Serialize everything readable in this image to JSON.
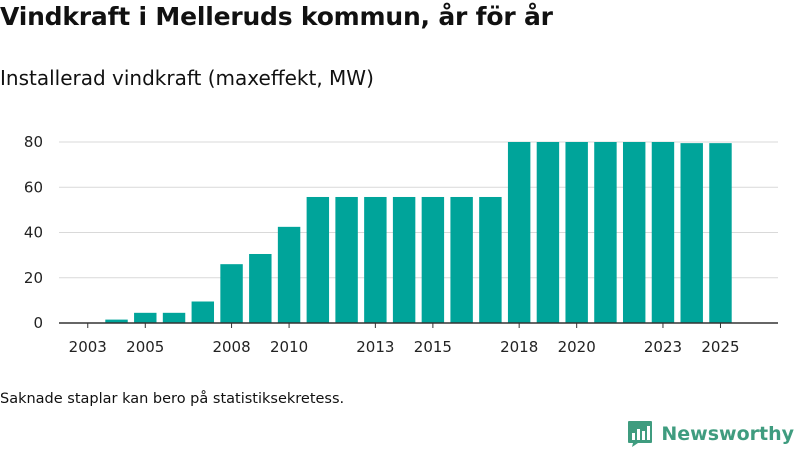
{
  "title": "Vindkraft i Melleruds kommun, år för år",
  "subtitle": "Installerad vindkraft (maxeffekt, MW)",
  "footnote": "Saknade staplar kan bero på statistiksekretess.",
  "brand": {
    "name": "Newsworthy",
    "color": "#3f9c7f",
    "icon": "newsworthy-logo-icon"
  },
  "colors": {
    "bar": "#00a49a",
    "grid": "#d9d9d9",
    "axis": "#333333"
  },
  "chart_data": {
    "type": "bar",
    "title": "Vindkraft i Melleruds kommun, år för år",
    "subtitle": "Installerad vindkraft (maxeffekt, MW)",
    "xlabel": "",
    "ylabel": "",
    "ylim": [
      0,
      85
    ],
    "yticks": [
      0,
      20,
      40,
      60,
      80
    ],
    "grid": true,
    "categories": [
      2003,
      2004,
      2005,
      2006,
      2007,
      2008,
      2009,
      2010,
      2011,
      2012,
      2013,
      2014,
      2015,
      2016,
      2017,
      2018,
      2019,
      2020,
      2021,
      2022,
      2023,
      2024,
      2025
    ],
    "values": [
      0,
      1.5,
      4.5,
      4.5,
      9.5,
      26,
      30.5,
      42.5,
      55.7,
      55.7,
      55.7,
      55.7,
      55.7,
      55.7,
      55.7,
      80,
      80,
      80,
      80,
      80,
      80,
      79.5,
      79.5
    ],
    "xtick_labels": [
      "2003",
      "2005",
      "2008",
      "2010",
      "2013",
      "2015",
      "2018",
      "2020",
      "2023",
      "2025"
    ]
  }
}
